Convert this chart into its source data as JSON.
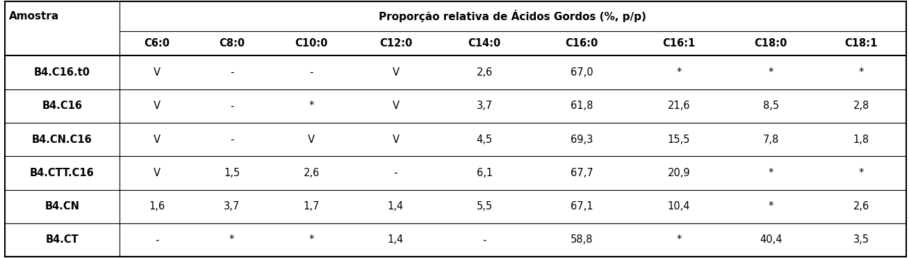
{
  "header_main": "Proporção relativa de Ácidos Gordos (%, p/p)",
  "col_header_left": "Amostra",
  "col_headers": [
    "C6:0",
    "C8:0",
    "C10:0",
    "C12:0",
    "C14:0",
    "C16:0",
    "C16:1",
    "C18:0",
    "C18:1"
  ],
  "rows": [
    [
      "B4.C16.t0",
      "V",
      "-",
      "-",
      "V",
      "2,6",
      "67,0",
      "*",
      "*",
      "*"
    ],
    [
      "B4.C16",
      "V",
      "-",
      "*",
      "V",
      "3,7",
      "61,8",
      "21,6",
      "8,5",
      "2,8"
    ],
    [
      "B4.CN.C16",
      "V",
      "-",
      "V",
      "V",
      "4,5",
      "69,3",
      "15,5",
      "7,8",
      "1,8"
    ],
    [
      "B4.CTT.C16",
      "V",
      "1,5",
      "2,6",
      "-",
      "6,1",
      "67,7",
      "20,9",
      "*",
      "*"
    ],
    [
      "B4.CN",
      "1,6",
      "3,7",
      "1,7",
      "1,4",
      "5,5",
      "67,1",
      "10,4",
      "*",
      "2,6"
    ],
    [
      "B4.CT",
      "-",
      "*",
      "*",
      "1,4",
      "-",
      "58,8",
      "*",
      "40,4",
      "3,5"
    ]
  ],
  "bg_color": "#ffffff",
  "line_color": "#000000",
  "text_color": "#000000",
  "header_fontsize": 11,
  "subheader_fontsize": 10.5,
  "cell_fontsize": 10.5
}
